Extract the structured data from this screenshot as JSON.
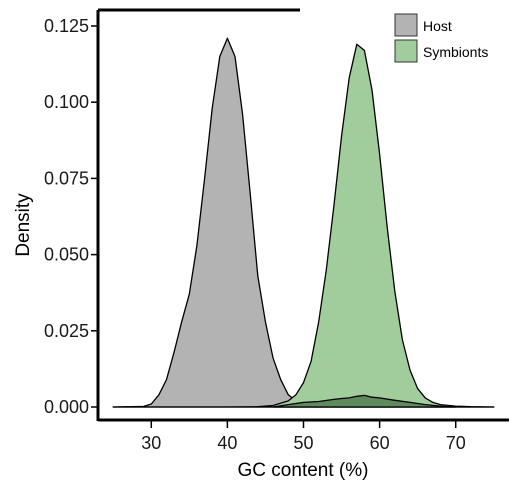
{
  "chart_data": {
    "type": "area",
    "title": "",
    "xlabel": "GC content (%)",
    "ylabel": "Density",
    "xlim": [
      23,
      77
    ],
    "ylim": [
      0,
      0.125
    ],
    "xticks": [
      30,
      40,
      50,
      60,
      70
    ],
    "yticks": [
      "0.000",
      "0.025",
      "0.050",
      "0.075",
      "0.100",
      "0.125"
    ],
    "ytick_values": [
      0,
      0.025,
      0.05,
      0.075,
      0.1,
      0.125
    ],
    "grid": false,
    "legend_position": "top-right",
    "series": [
      {
        "name": "Host",
        "color": "#b3b3b3",
        "x": [
          25,
          29,
          30,
          31,
          32,
          33,
          34,
          35,
          36,
          37,
          38,
          39,
          40,
          41,
          42,
          43,
          44,
          45,
          46,
          47,
          48,
          49,
          50,
          51,
          52,
          54,
          56,
          58,
          60,
          62,
          64,
          66,
          68,
          70,
          72,
          74,
          75
        ],
        "y": [
          0.0,
          0.0002,
          0.001,
          0.004,
          0.009,
          0.018,
          0.028,
          0.037,
          0.053,
          0.075,
          0.098,
          0.115,
          0.121,
          0.115,
          0.096,
          0.07,
          0.043,
          0.028,
          0.016,
          0.009,
          0.004,
          0.002,
          0.001,
          0.0005,
          0.0002,
          0.0001,
          0.0,
          0.0,
          0.0,
          0.0,
          0.0,
          0.0,
          0.0,
          0.0,
          0.0,
          0.0,
          0.0
        ]
      },
      {
        "name": "Symbionts",
        "color": "#a1cc9c",
        "x": [
          25,
          40,
          44,
          46,
          48,
          49,
          50,
          51,
          52,
          53,
          54,
          55,
          56,
          57,
          58,
          59,
          60,
          61,
          62,
          63,
          64,
          65,
          66,
          67,
          68,
          70,
          72,
          75
        ],
        "y": [
          0.0,
          0.0,
          0.0001,
          0.0005,
          0.002,
          0.004,
          0.008,
          0.015,
          0.028,
          0.045,
          0.066,
          0.089,
          0.108,
          0.119,
          0.117,
          0.104,
          0.083,
          0.059,
          0.038,
          0.022,
          0.012,
          0.006,
          0.003,
          0.0015,
          0.0008,
          0.0003,
          0.0001,
          0.0
        ]
      },
      {
        "name": "",
        "color": "#5f8a5b",
        "x": [
          46,
          48,
          50,
          52,
          54,
          55,
          56,
          57,
          58,
          59,
          60,
          62,
          64,
          66,
          68,
          70
        ],
        "y": [
          0.0,
          0.0008,
          0.0015,
          0.0018,
          0.0025,
          0.0028,
          0.003,
          0.0035,
          0.0038,
          0.0032,
          0.003,
          0.0022,
          0.0015,
          0.0008,
          0.0003,
          0.0
        ]
      }
    ]
  }
}
